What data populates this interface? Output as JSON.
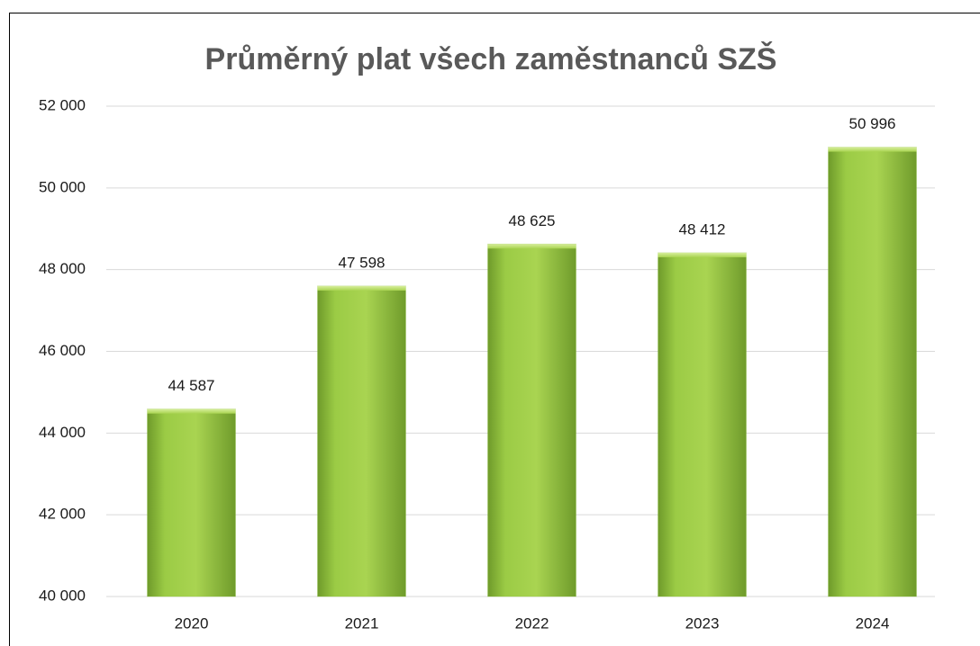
{
  "chart_data": {
    "type": "bar",
    "title": "Průměrný plat všech zaměstnanců SZŠ",
    "categories": [
      "2020",
      "2021",
      "2022",
      "2023",
      "2024"
    ],
    "values": [
      44587,
      47598,
      48625,
      48412,
      50996
    ],
    "value_labels": [
      "44 587",
      "47 598",
      "48 625",
      "48 412",
      "50 996"
    ],
    "color": "#8fc23a",
    "ylim": [
      40000,
      52000
    ],
    "yticks": [
      {
        "value": 40000,
        "label": "40 000"
      },
      {
        "value": 42000,
        "label": "42 000"
      },
      {
        "value": 44000,
        "label": "44 000"
      },
      {
        "value": 46000,
        "label": "46 000"
      },
      {
        "value": 48000,
        "label": "48 000"
      },
      {
        "value": 50000,
        "label": "50 000"
      },
      {
        "value": 52000,
        "label": "52 000"
      }
    ],
    "grid": true
  }
}
